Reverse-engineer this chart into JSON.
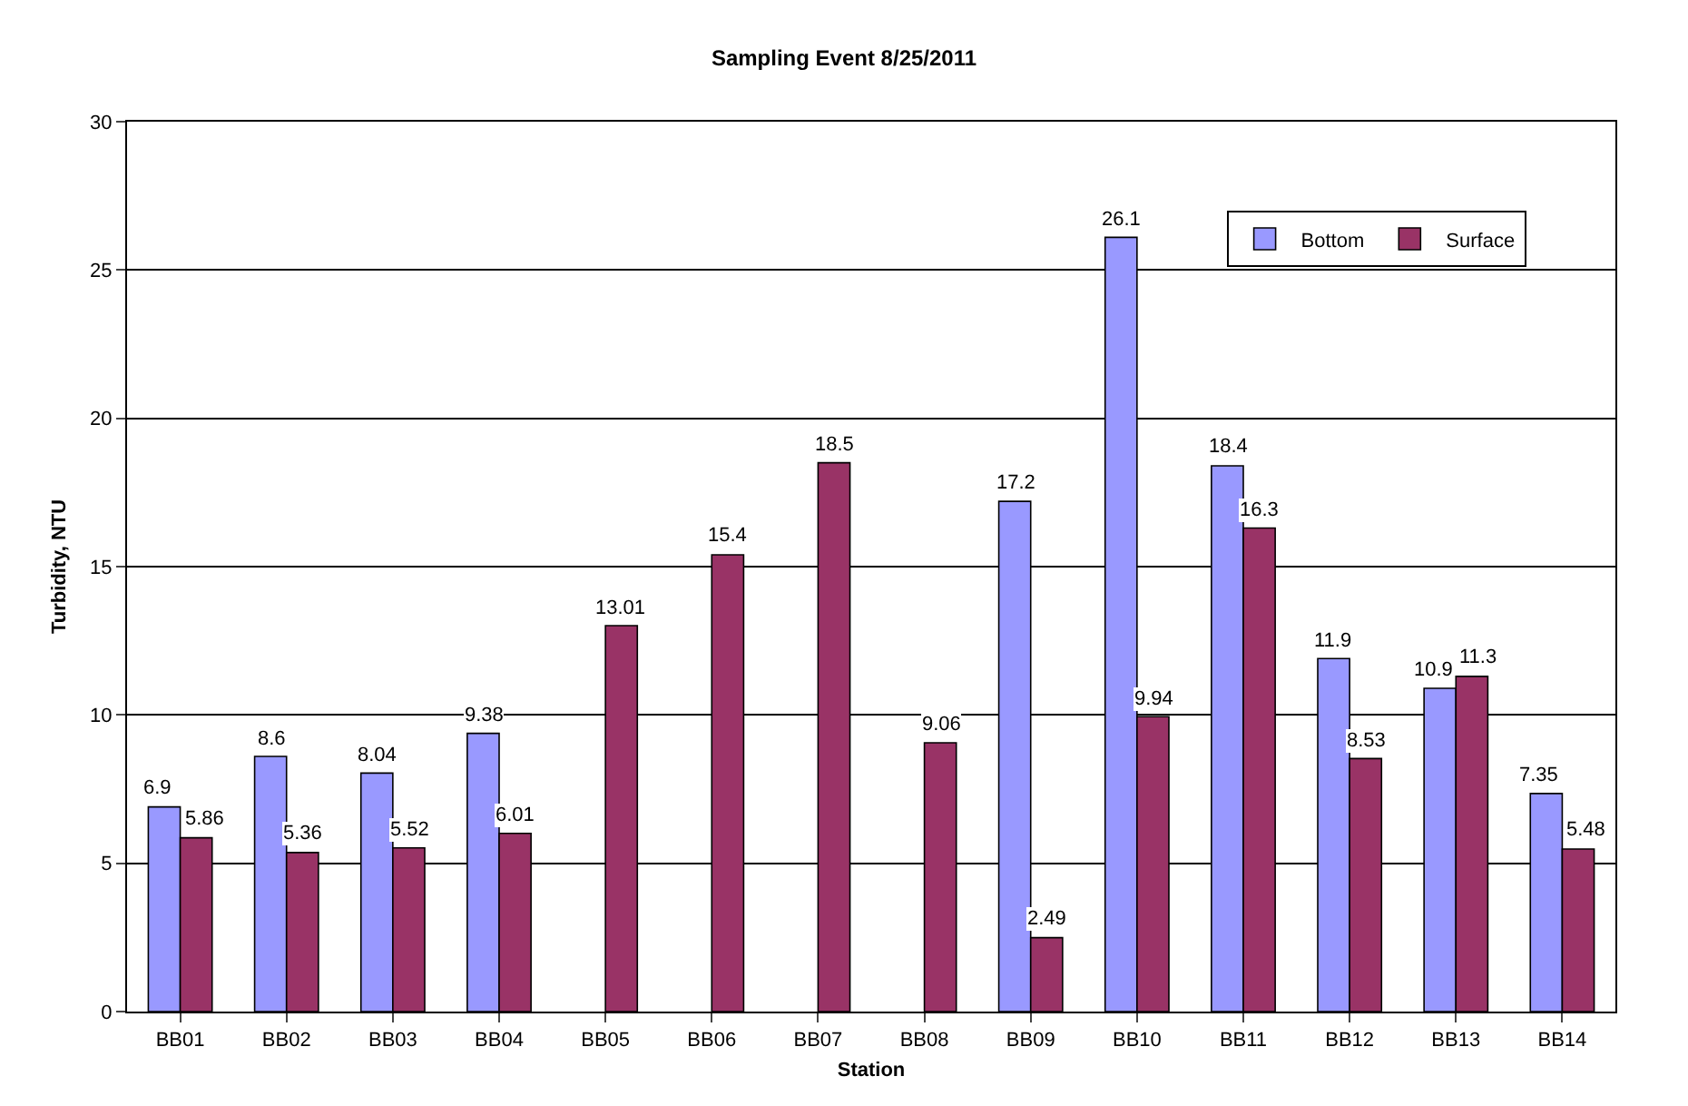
{
  "chart_data": {
    "type": "bar",
    "title": "Sampling Event 8/25/2011",
    "xlabel": "Station",
    "ylabel": "Turbidity, NTU",
    "categories": [
      "BB01",
      "BB02",
      "BB03",
      "BB04",
      "BB05",
      "BB06",
      "BB07",
      "BB08",
      "BB09",
      "BB10",
      "BB11",
      "BB12",
      "BB13",
      "BB14"
    ],
    "series": [
      {
        "name": "Bottom",
        "color": "#9999ff",
        "values": [
          6.9,
          8.6,
          8.04,
          9.38,
          null,
          null,
          null,
          null,
          17.2,
          26.1,
          18.4,
          11.9,
          10.9,
          7.35
        ]
      },
      {
        "name": "Surface",
        "color": "#993366",
        "values": [
          5.86,
          5.36,
          5.52,
          6.01,
          13.01,
          15.4,
          18.5,
          9.06,
          2.49,
          9.94,
          16.3,
          8.53,
          11.3,
          5.48
        ]
      }
    ],
    "ylim": [
      0,
      30
    ],
    "yticks": [
      0,
      5,
      10,
      15,
      20,
      25,
      30
    ],
    "grid": "y",
    "legend": "top right",
    "data_labels": true
  }
}
